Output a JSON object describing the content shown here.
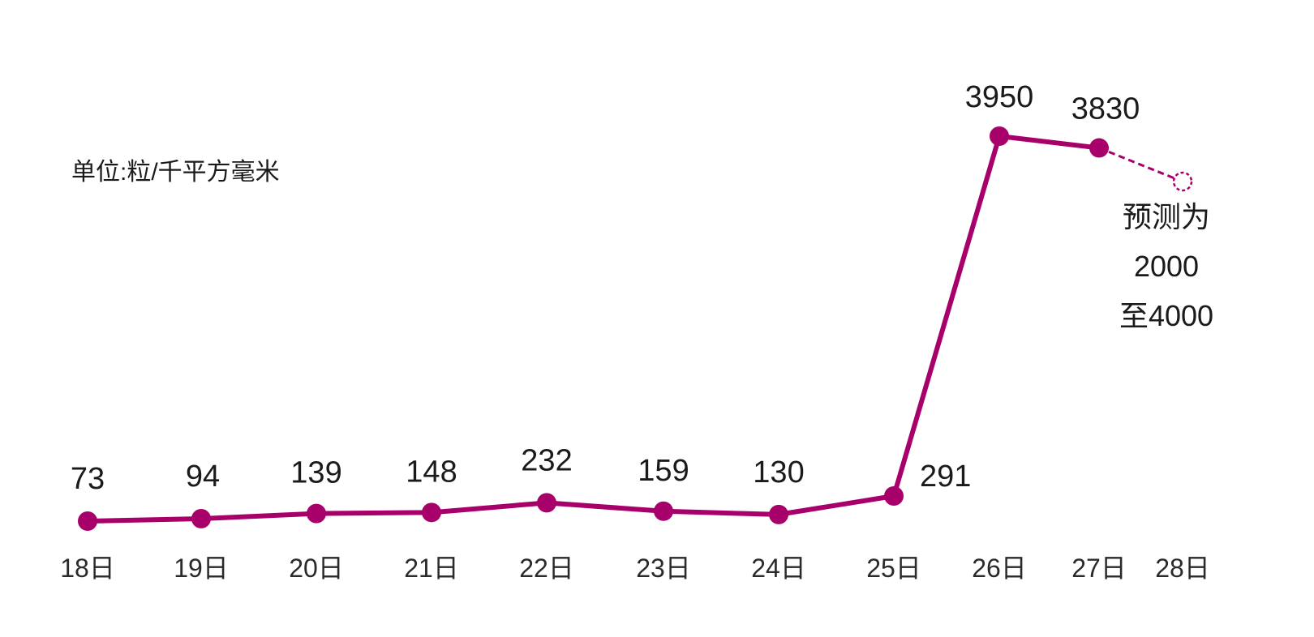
{
  "colors": {
    "line": "#a8006b",
    "text": "#1a1a1a"
  },
  "unit_label": "单位:粒/千平方毫米",
  "chart_data": {
    "type": "line",
    "title": "",
    "xlabel": "",
    "ylabel": "",
    "categories": [
      "18日",
      "19日",
      "20日",
      "21日",
      "22日",
      "23日",
      "24日",
      "25日",
      "26日",
      "27日",
      "28日"
    ],
    "series": [
      {
        "values": [
          73,
          94,
          139,
          148,
          232,
          159,
          130,
          291,
          3950,
          3830,
          null
        ]
      }
    ],
    "data_labels": [
      "73",
      "94",
      "139",
      "148",
      "232",
      "159",
      "130",
      "291",
      "3950",
      "3830",
      ""
    ],
    "forecast": {
      "category": "28日",
      "range": [
        2000,
        4000
      ],
      "lines": [
        "预测为",
        "2000",
        "至4000"
      ]
    },
    "grid": false,
    "legend": "none"
  }
}
